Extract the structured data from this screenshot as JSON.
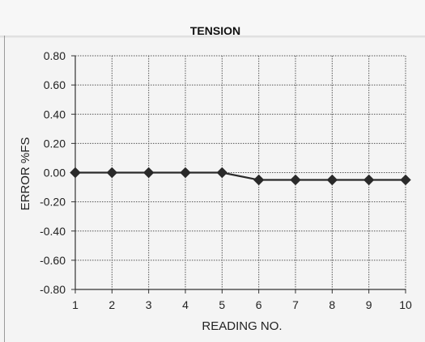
{
  "chart_data": {
    "type": "line",
    "title": "TENSION",
    "xlabel": "READING NO.",
    "ylabel": "ERROR %FS",
    "x": [
      1,
      2,
      3,
      4,
      5,
      6,
      7,
      8,
      9,
      10
    ],
    "x_tick_labels": [
      "1",
      "2",
      "3",
      "4",
      "5",
      "6",
      "7",
      "8",
      "9",
      "10"
    ],
    "y_tick_labels": [
      "0.80",
      "0.60",
      "0.40",
      "0.20",
      "0.00",
      "-0.20",
      "-0.40",
      "-0.60",
      "-0.80"
    ],
    "ylim": [
      -0.8,
      0.8
    ],
    "xlim": [
      1,
      10
    ],
    "grid": true,
    "series": [
      {
        "values": [
          0.0,
          0.0,
          0.0,
          0.0,
          0.0,
          -0.05,
          -0.05,
          -0.05,
          -0.05,
          -0.05
        ],
        "marker": "diamond",
        "color": "#2a2a2a"
      }
    ]
  }
}
